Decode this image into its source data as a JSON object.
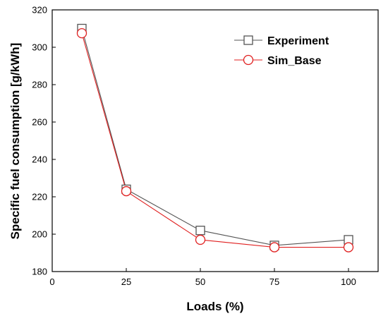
{
  "chart_data": {
    "type": "line",
    "title": "",
    "xlabel": "Loads (%)",
    "ylabel": "Specific fuel consumption [g/kWh]",
    "xlim": [
      0,
      110
    ],
    "ylim": [
      180,
      320
    ],
    "xticks": [
      0,
      25,
      50,
      75,
      100
    ],
    "yticks": [
      180,
      200,
      220,
      240,
      260,
      280,
      300,
      320
    ],
    "grid": false,
    "legend_position": "top-right",
    "x": [
      10,
      25,
      50,
      75,
      100
    ],
    "series": [
      {
        "name": "Experiment",
        "values": [
          310.0,
          224.0,
          202.0,
          194.0,
          197.0
        ],
        "color": "#555555",
        "marker": "square"
      },
      {
        "name": "Sim_Base",
        "values": [
          307.5,
          223.0,
          197.0,
          193.0,
          193.0
        ],
        "color": "#e02020",
        "marker": "circle"
      }
    ]
  }
}
